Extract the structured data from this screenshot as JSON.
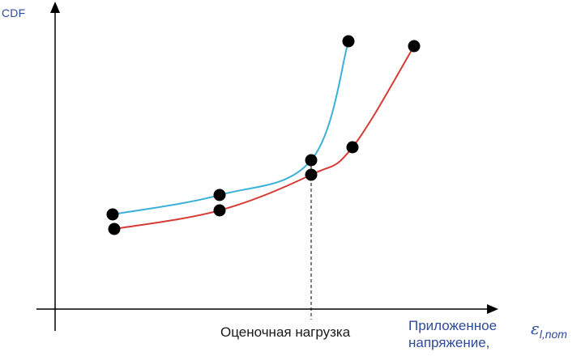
{
  "chart_data": {
    "type": "line",
    "title": "",
    "ylabel": "CDF",
    "xlabel": "Приложенное напряжение,",
    "x_symbol": "ε",
    "x_symbol_subscript": "l,nom",
    "annotation": "Оценочная нагрузка",
    "grid": false,
    "legend": "none",
    "series": [
      {
        "color": "#3ab0d8",
        "points": [
          [
            139,
            265
          ],
          [
            271,
            241
          ],
          [
            384,
            198
          ],
          [
            430,
            51
          ]
        ]
      },
      {
        "color": "#d63a34",
        "points": [
          [
            141,
            283
          ],
          [
            271,
            260
          ],
          [
            384,
            216
          ],
          [
            435,
            182
          ],
          [
            511,
            57
          ]
        ]
      }
    ],
    "reference_x": 384
  }
}
